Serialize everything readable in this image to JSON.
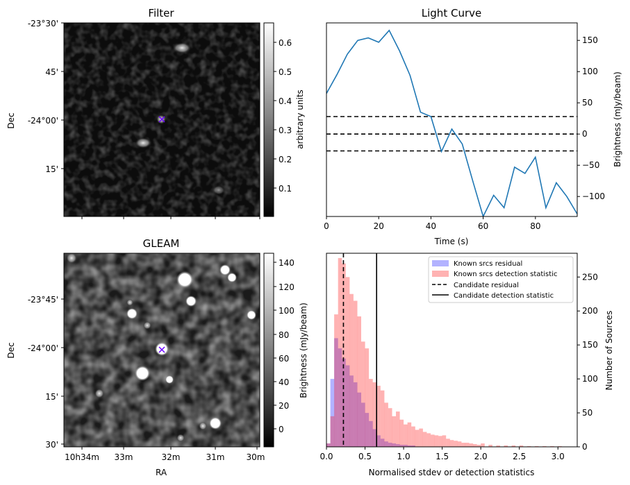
{
  "panels": {
    "filter": {
      "title": "Filter",
      "dec_ticks": [
        "-23°30'",
        "45'",
        "-24°00'",
        "15'"
      ],
      "ylabel": "Dec",
      "colorbar_ticks": [
        "0.6",
        "0.5",
        "0.4",
        "0.3",
        "0.2",
        "0.1"
      ],
      "colorbar_label": "arbitrary units"
    },
    "gleam": {
      "title": "GLEAM",
      "dec_ticks": [
        "-23°45'",
        "-24°00'",
        "15'",
        "30'"
      ],
      "ra_ticks": [
        "10h34m",
        "33m",
        "32m",
        "31m",
        "30m"
      ],
      "ylabel": "Dec",
      "xlabel": "RA",
      "colorbar_ticks": [
        "140",
        "120",
        "100",
        "80",
        "60",
        "40",
        "20",
        "0"
      ],
      "colorbar_label": "Brightness (mJy/beam)"
    }
  },
  "chart_data": [
    {
      "type": "line",
      "title": "Light Curve",
      "xlabel": "Time (s)",
      "ylabel": "Brightness (mJy/beam)",
      "xlim": [
        0,
        96
      ],
      "ylim": [
        -132,
        178
      ],
      "xticks": [
        0,
        20,
        40,
        60,
        80
      ],
      "yticks": [
        -100,
        -50,
        0,
        50,
        100,
        150
      ],
      "color": "#1f77b4",
      "x": [
        0,
        4,
        8,
        12,
        16,
        20,
        24,
        28,
        32,
        36,
        40,
        44,
        48,
        52,
        56,
        60,
        64,
        68,
        72,
        76,
        80,
        84,
        88,
        92,
        96
      ],
      "y": [
        65,
        95,
        128,
        150,
        154,
        147,
        166,
        133,
        94,
        35,
        28,
        -28,
        8,
        -16,
        -75,
        -132,
        -98,
        -118,
        -53,
        -63,
        -37,
        -118,
        -78,
        -100,
        -128
      ],
      "hlines": [
        28,
        0,
        -27
      ]
    },
    {
      "type": "bar",
      "xlabel": "Normalised stdev or detection statistics",
      "ylabel": "Number of Sources",
      "xlim": [
        0,
        3.25
      ],
      "ylim": [
        0,
        285
      ],
      "xticks": [
        0.0,
        0.5,
        1.0,
        1.5,
        2.0,
        2.5,
        3.0
      ],
      "yticks": [
        0,
        50,
        100,
        150,
        200,
        250
      ],
      "bin_width": 0.05,
      "series": [
        {
          "name": "Known srcs residual",
          "color": "#0000ff",
          "alpha": 0.3,
          "bin_starts": [
            0.0,
            0.05,
            0.1,
            0.15,
            0.2,
            0.25,
            0.3,
            0.35,
            0.4,
            0.45,
            0.5,
            0.55,
            0.6,
            0.65,
            0.7,
            0.75,
            0.8,
            0.85,
            0.9,
            0.95,
            1.0,
            1.05,
            1.1
          ],
          "values": [
            5,
            100,
            160,
            145,
            130,
            120,
            105,
            95,
            80,
            65,
            50,
            38,
            26,
            17,
            12,
            8,
            6,
            5,
            4,
            3,
            3,
            2,
            2
          ]
        },
        {
          "name": "Known srcs detection statistic",
          "color": "#ff0000",
          "alpha": 0.3,
          "bin_starts": [
            0.0,
            0.05,
            0.1,
            0.15,
            0.2,
            0.25,
            0.3,
            0.35,
            0.4,
            0.45,
            0.5,
            0.55,
            0.6,
            0.65,
            0.7,
            0.75,
            0.8,
            0.85,
            0.9,
            0.95,
            1.0,
            1.05,
            1.1,
            1.15,
            1.2,
            1.25,
            1.3,
            1.35,
            1.4,
            1.45,
            1.5,
            1.55,
            1.6,
            1.65,
            1.7,
            1.75,
            1.8,
            1.85,
            1.9,
            1.95,
            2.0,
            2.1,
            2.2,
            2.3,
            2.4,
            2.5,
            2.6,
            2.7,
            2.8,
            2.9,
            3.0
          ],
          "values": [
            5,
            45,
            195,
            278,
            270,
            250,
            225,
            215,
            192,
            155,
            145,
            100,
            95,
            90,
            83,
            65,
            57,
            45,
            52,
            40,
            33,
            36,
            30,
            25,
            27,
            22,
            20,
            18,
            17,
            16,
            17,
            12,
            10,
            9,
            8,
            6,
            6,
            5,
            4,
            3,
            5,
            3,
            2,
            2,
            2,
            2,
            1,
            1,
            1,
            1,
            1
          ]
        }
      ],
      "vlines": [
        {
          "name": "Candidate residual",
          "x": 0.22,
          "style": "dashed"
        },
        {
          "name": "Candidate detection statistic",
          "x": 0.65,
          "style": "solid"
        }
      ],
      "legend_position": "top-right"
    }
  ]
}
